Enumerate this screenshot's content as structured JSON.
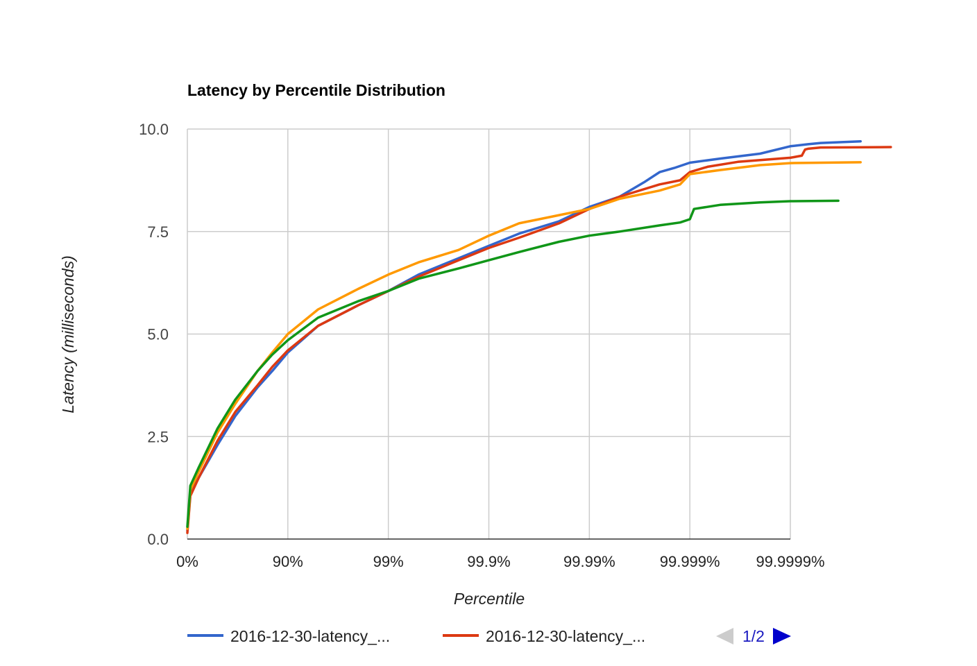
{
  "chart_data": {
    "type": "line",
    "title": "Latency by Percentile Distribution",
    "xlabel": "Percentile",
    "ylabel": "Latency (milliseconds)",
    "x_scale": "log-percentile (1/(1-p))",
    "x_ticks": [
      "0%",
      "90%",
      "99%",
      "99.9%",
      "99.99%",
      "99.999%",
      "99.9999%"
    ],
    "x_tick_values": [
      1,
      10,
      100,
      1000,
      10000,
      100000,
      1000000
    ],
    "y_ticks": [
      "0.0",
      "2.5",
      "5.0",
      "7.5",
      "10.0"
    ],
    "ylim": [
      0,
      10
    ],
    "grid": true,
    "legend_position": "bottom",
    "series": [
      {
        "name": "2016-12-30-latency_...",
        "color": "#3366cc",
        "x": [
          1,
          1.07,
          1.3,
          2,
          3,
          5,
          7,
          10,
          20,
          50,
          100,
          200,
          500,
          1000,
          2000,
          5000,
          10000,
          20000,
          35000,
          50000,
          70000,
          100000,
          200000,
          500000,
          1000000,
          1500000,
          2000000,
          5000000
        ],
        "y": [
          0.2,
          1.1,
          1.5,
          2.3,
          3.0,
          3.7,
          4.1,
          4.55,
          5.2,
          5.7,
          6.05,
          6.45,
          6.85,
          7.15,
          7.45,
          7.75,
          8.1,
          8.35,
          8.7,
          8.95,
          9.05,
          9.18,
          9.28,
          9.4,
          9.58,
          9.63,
          9.66,
          9.7
        ]
      },
      {
        "name": "2016-12-30-latency_...",
        "color": "#dc3912",
        "x": [
          1,
          1.07,
          1.3,
          2,
          3,
          5,
          7,
          10,
          20,
          50,
          100,
          200,
          500,
          1000,
          2000,
          5000,
          10000,
          20000,
          50000,
          80000,
          100000,
          150000,
          300000,
          700000,
          1000000,
          1300000,
          1400000,
          1500000,
          2000000,
          10000000
        ],
        "y": [
          0.15,
          1.05,
          1.5,
          2.4,
          3.1,
          3.75,
          4.2,
          4.6,
          5.2,
          5.7,
          6.05,
          6.4,
          6.8,
          7.1,
          7.35,
          7.7,
          8.05,
          8.35,
          8.65,
          8.75,
          8.95,
          9.08,
          9.2,
          9.27,
          9.3,
          9.35,
          9.5,
          9.52,
          9.55,
          9.56
        ]
      },
      {
        "name": "2016-12-30-latency_...",
        "color": "#ff9900",
        "x": [
          1,
          1.07,
          1.3,
          2,
          3,
          5,
          7,
          10,
          20,
          50,
          100,
          200,
          500,
          1000,
          2000,
          5000,
          10000,
          20000,
          50000,
          80000,
          100000,
          200000,
          500000,
          1000000,
          5000000
        ],
        "y": [
          0.25,
          1.2,
          1.65,
          2.6,
          3.3,
          4.1,
          4.55,
          5.0,
          5.6,
          6.1,
          6.45,
          6.75,
          7.05,
          7.4,
          7.7,
          7.9,
          8.05,
          8.3,
          8.5,
          8.65,
          8.9,
          9.0,
          9.12,
          9.17,
          9.19
        ]
      },
      {
        "name": "",
        "color": "#109618",
        "x": [
          1,
          1.07,
          1.3,
          2,
          3,
          5,
          7,
          10,
          20,
          50,
          100,
          200,
          500,
          1000,
          2000,
          5000,
          10000,
          20000,
          50000,
          80000,
          100000,
          110000,
          200000,
          500000,
          1000000,
          3000000
        ],
        "y": [
          0.3,
          1.3,
          1.75,
          2.7,
          3.4,
          4.1,
          4.5,
          4.85,
          5.4,
          5.8,
          6.05,
          6.35,
          6.6,
          6.8,
          7.0,
          7.25,
          7.4,
          7.5,
          7.65,
          7.72,
          7.8,
          8.05,
          8.15,
          8.21,
          8.24,
          8.25
        ]
      }
    ]
  },
  "legend": {
    "items": [
      {
        "label": "2016-12-30-latency_...",
        "color": "#3366cc"
      },
      {
        "label": "2016-12-30-latency_...",
        "color": "#dc3912"
      }
    ],
    "page_text": "1/2"
  }
}
